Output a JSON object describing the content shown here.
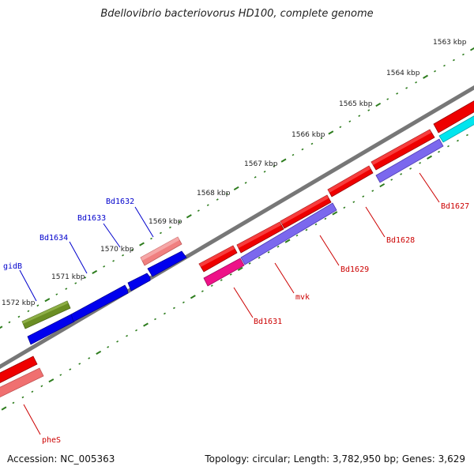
{
  "title": "Bdellovibrio bacteriovorus HD100, complete genome",
  "footer": {
    "accession": "Accession: NC_005363",
    "summary": "Topology: circular; Length: 3,782,950 bp; Genes: 3,629"
  },
  "colors": {
    "backbone": "#777777",
    "tick": "#2e7d1e",
    "forward_label": "#0000cc",
    "reverse_label": "#cc0000"
  },
  "ticks": [
    "1563 kbp",
    "1564 kbp",
    "1565 kbp",
    "1566 kbp",
    "1567 kbp",
    "1568 kbp",
    "1569 kbp",
    "1570 kbp",
    "1571 kbp",
    "1572 kbp"
  ],
  "genes": [
    {
      "label": "gidB",
      "strand": "forward",
      "color": "#6b8e23"
    },
    {
      "label": "Bd1634",
      "strand": "forward",
      "color": "#0000ee"
    },
    {
      "label": "Bd1633",
      "strand": "forward",
      "color": "#0000ee"
    },
    {
      "label": "Bd1632",
      "strand": "forward",
      "color": "#0000ee"
    },
    {
      "label": "",
      "strand": "forward",
      "color": "#f08080"
    },
    {
      "label": "Bd1631",
      "strand": "reverse",
      "color": "#ee1188"
    },
    {
      "label": "mvk",
      "strand": "reverse",
      "color": "#7b68ee"
    },
    {
      "label": "Bd1629",
      "strand": "reverse",
      "color": "#7b68ee"
    },
    {
      "label": "Bd1628",
      "strand": "reverse",
      "color": "#7b68ee"
    },
    {
      "label": "Bd1627",
      "strand": "reverse",
      "color": "#00e5ee"
    },
    {
      "label": "pheS",
      "strand": "reverse",
      "color": "#ee0000"
    }
  ]
}
